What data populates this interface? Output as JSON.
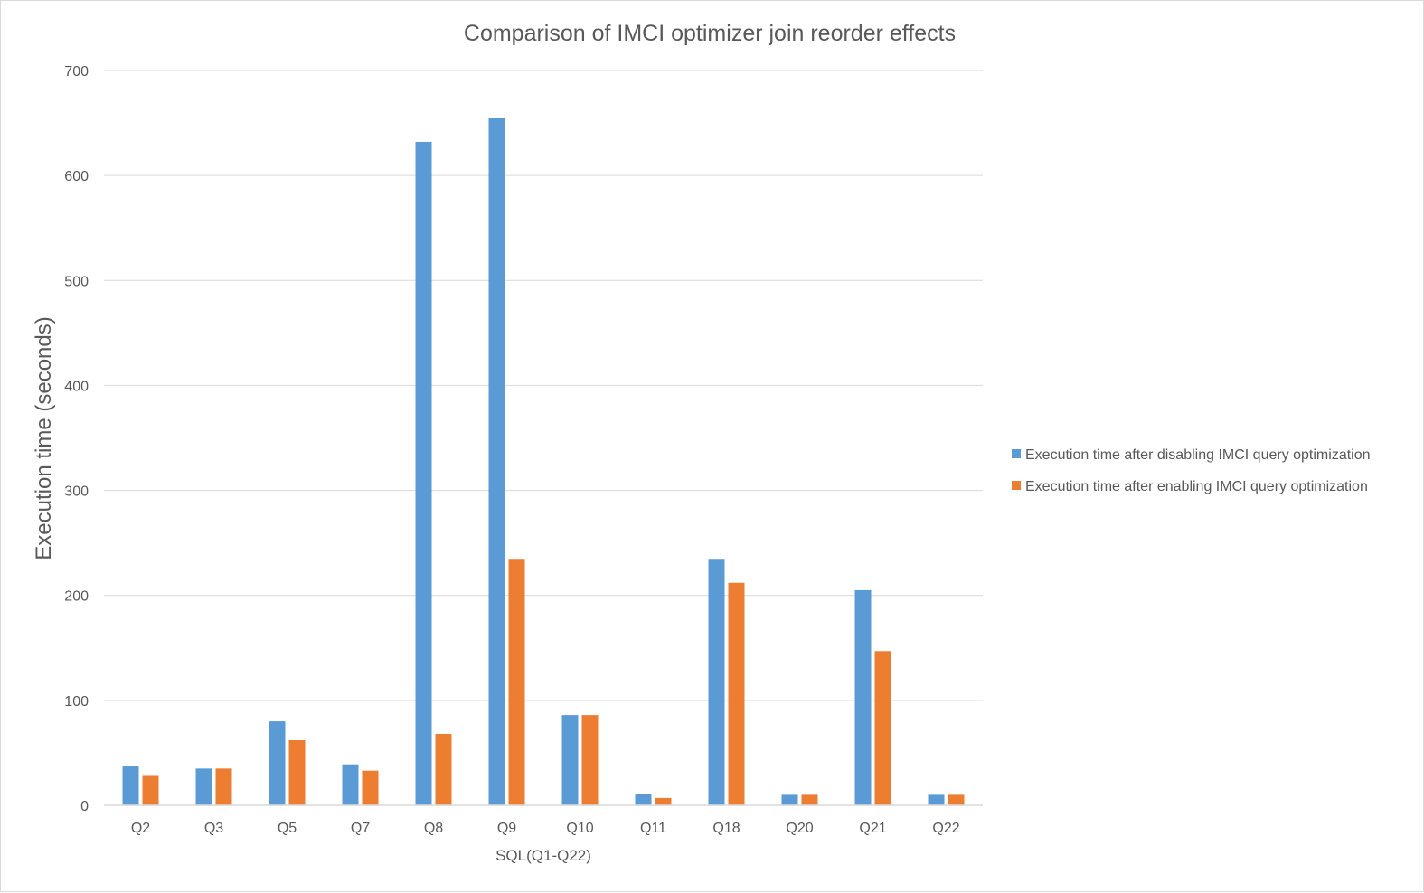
{
  "chart_data": {
    "type": "bar",
    "title": "Comparison of IMCI optimizer join reorder effects",
    "xlabel": "SQL(Q1-Q22)",
    "ylabel": "Execution time (seconds)",
    "ylim": [
      0,
      700
    ],
    "yticks": [
      0,
      100,
      200,
      300,
      400,
      500,
      600,
      700
    ],
    "grid": true,
    "legend_position": "right",
    "categories": [
      "Q2",
      "Q3",
      "Q5",
      "Q7",
      "Q8",
      "Q9",
      "Q10",
      "Q11",
      "Q18",
      "Q20",
      "Q21",
      "Q22"
    ],
    "series": [
      {
        "name": "Execution time after disabling IMCI query optimization",
        "color": "#5b9bd5",
        "values": [
          37,
          35,
          80,
          39,
          632,
          655,
          86,
          11,
          234,
          10,
          205,
          10
        ]
      },
      {
        "name": "Execution time after enabling IMCI query optimization",
        "color": "#ed7d31",
        "values": [
          28,
          35,
          62,
          33,
          68,
          234,
          86,
          7,
          212,
          10,
          147,
          10
        ]
      }
    ]
  }
}
